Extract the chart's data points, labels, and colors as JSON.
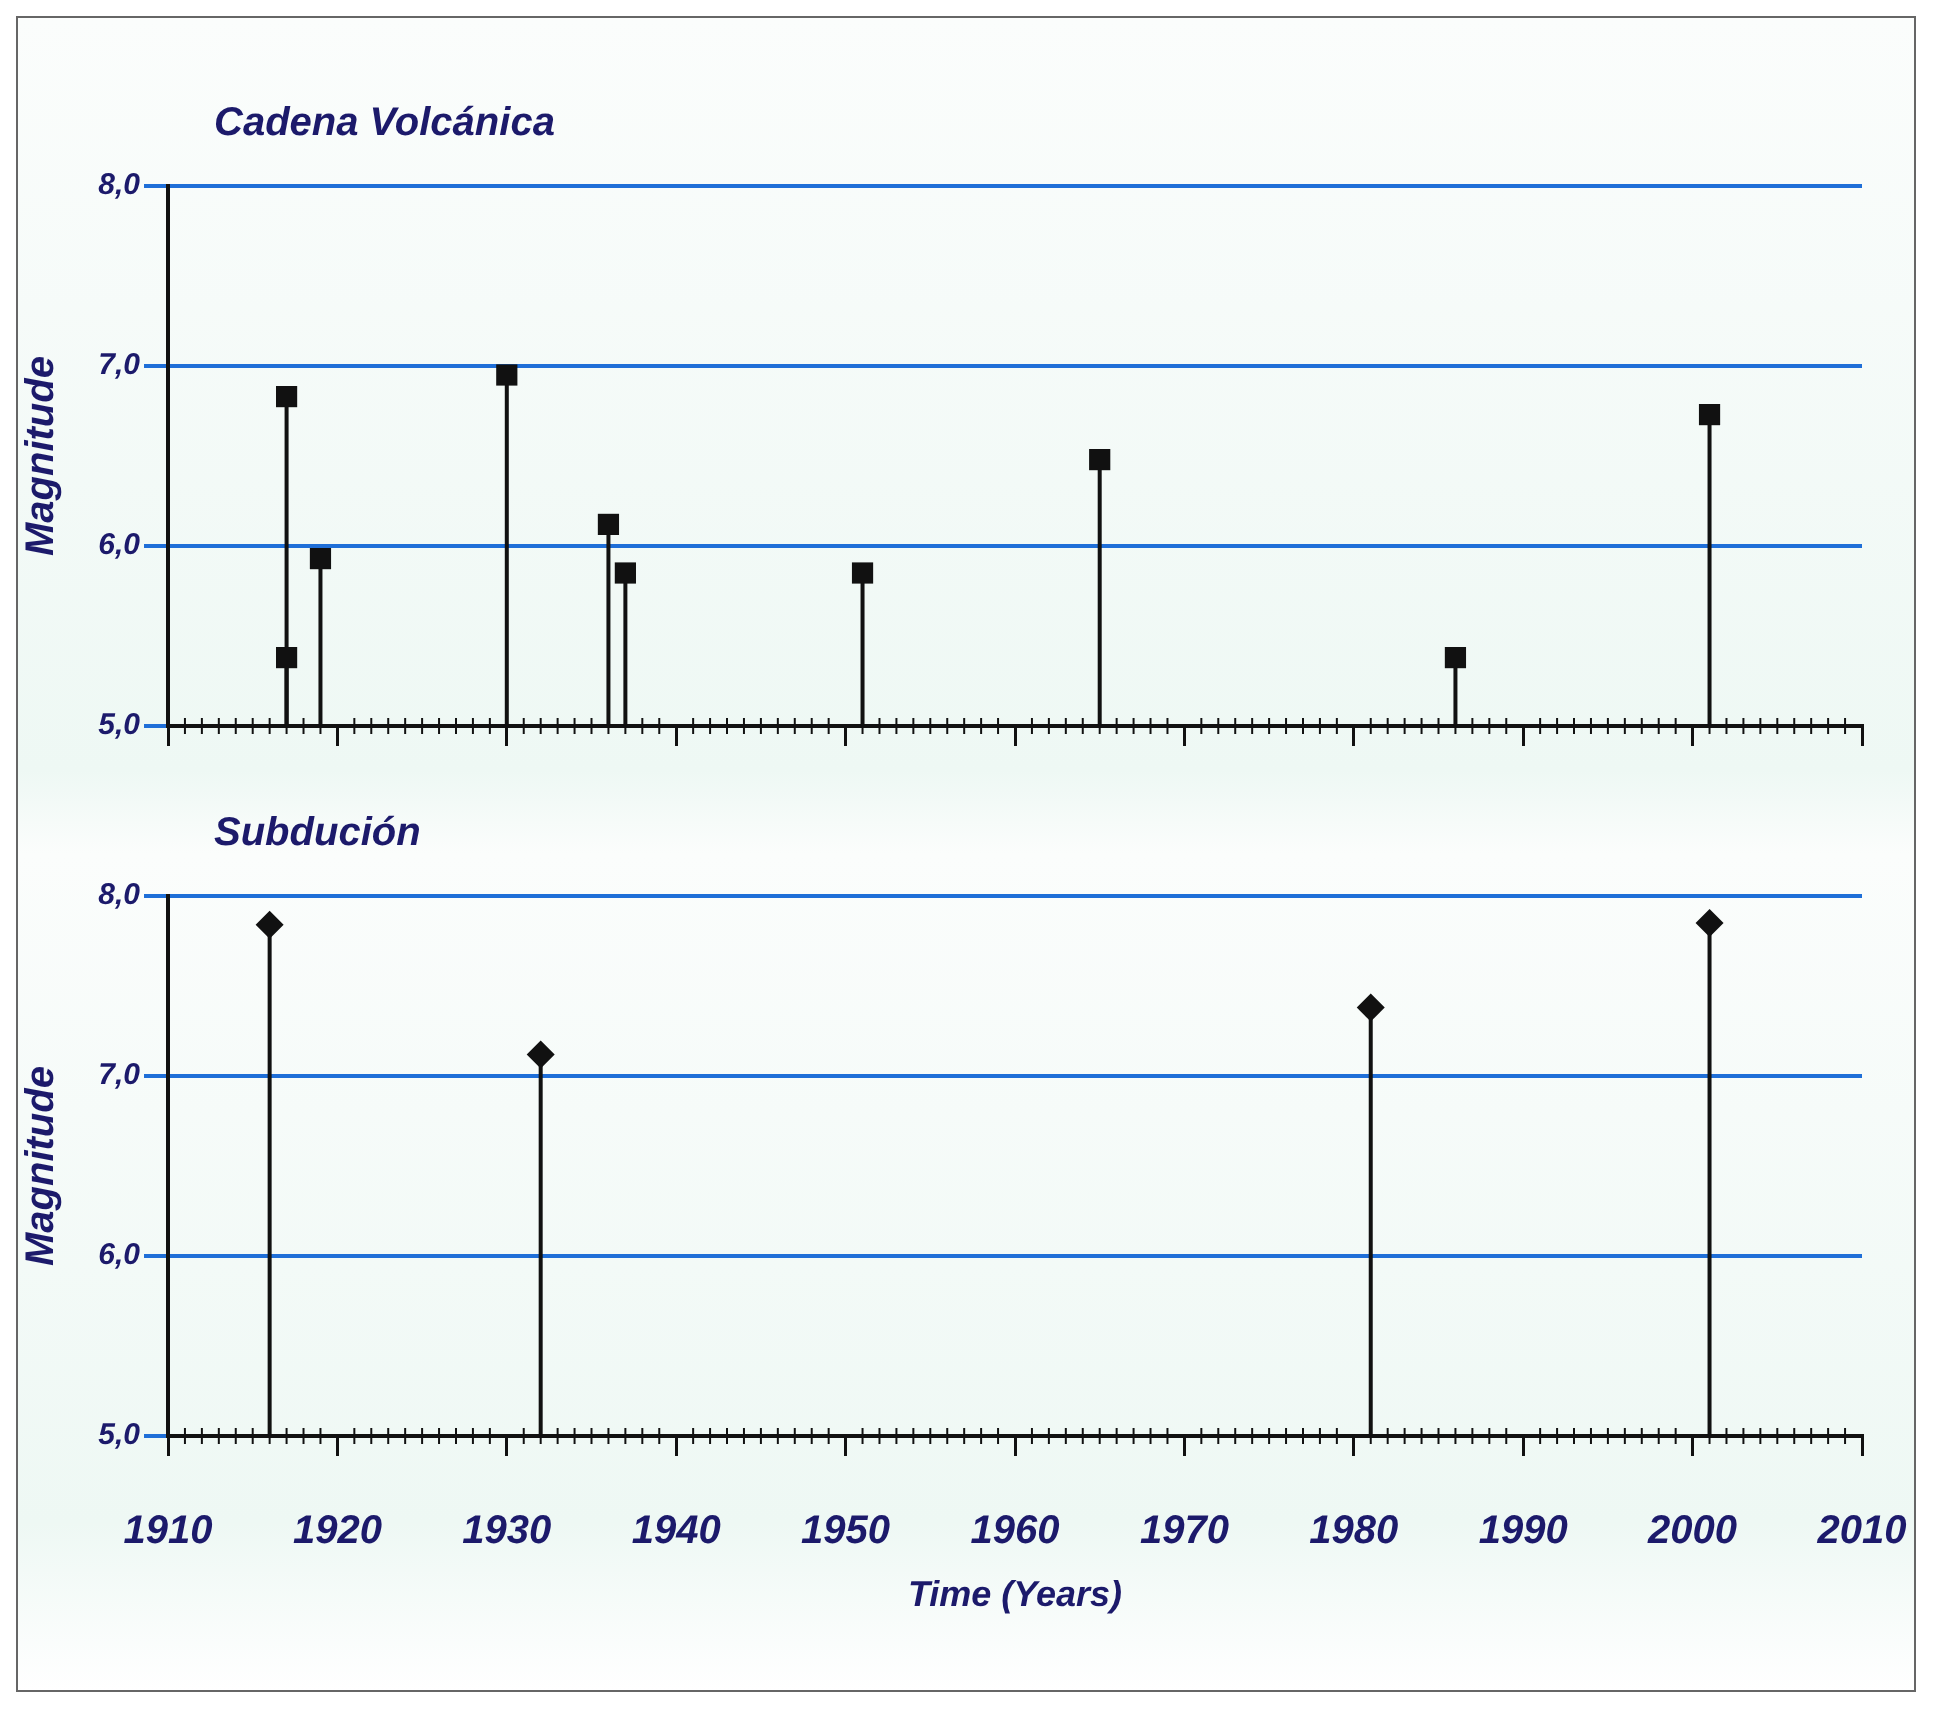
{
  "chart_data": [
    {
      "type": "lollipop",
      "title": "Cadena Volcánica",
      "ylabel": "Magnitude",
      "x": [
        1917,
        1917,
        1919,
        1930,
        1936,
        1937,
        1951,
        1965,
        1986,
        2001
      ],
      "values": [
        6.83,
        5.38,
        5.93,
        6.95,
        6.12,
        5.85,
        5.85,
        6.48,
        5.38,
        6.73
      ],
      "color": "#111111",
      "marker": "square",
      "xlim": [
        1910,
        2010
      ],
      "xticks": [
        1910,
        1920,
        1930,
        1940,
        1950,
        1960,
        1970,
        1980,
        1990,
        2000,
        2010
      ],
      "ylim": [
        5,
        8
      ],
      "yticks": [
        {
          "value": 5,
          "label": "5,0"
        },
        {
          "value": 6,
          "label": "6,0"
        },
        {
          "value": 7,
          "label": "7,0"
        },
        {
          "value": 8,
          "label": "8,0"
        }
      ],
      "grid": "y",
      "tick_labels": "y"
    },
    {
      "type": "lollipop",
      "title": "Subdución",
      "xlabel": "Time (Years)",
      "ylabel": "Magnitude",
      "x": [
        1916,
        1932,
        1981,
        2001
      ],
      "values": [
        7.84,
        7.12,
        7.38,
        7.85
      ],
      "color": "#111111",
      "marker": "diamond",
      "xlim": [
        1910,
        2010
      ],
      "xticks": [
        1910,
        1920,
        1930,
        1940,
        1950,
        1960,
        1970,
        1980,
        1990,
        2000,
        2010
      ],
      "ylim": [
        5,
        8
      ],
      "yticks": [
        {
          "value": 5,
          "label": "5,0"
        },
        {
          "value": 6,
          "label": "6,0"
        },
        {
          "value": 7,
          "label": "7,0"
        },
        {
          "value": 8,
          "label": "8,0"
        }
      ],
      "grid": "y"
    }
  ]
}
